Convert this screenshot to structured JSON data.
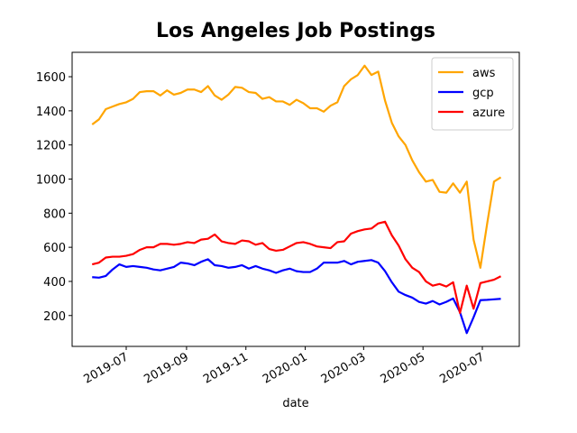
{
  "chart_data": {
    "type": "line",
    "title": "Los Angeles Job Postings",
    "xlabel": "date",
    "xlabel_color": "#8b0000",
    "x": [
      18043,
      18050,
      18057,
      18064,
      18071,
      18078,
      18085,
      18092,
      18099,
      18106,
      18113,
      18120,
      18127,
      18134,
      18141,
      18148,
      18155,
      18162,
      18169,
      18176,
      18183,
      18190,
      18197,
      18204,
      18211,
      18218,
      18225,
      18232,
      18239,
      18246,
      18253,
      18260,
      18267,
      18274,
      18281,
      18288,
      18295,
      18302,
      18309,
      18316,
      18323,
      18330,
      18337,
      18344,
      18351,
      18358,
      18365,
      18372,
      18379,
      18386,
      18393,
      18400,
      18407,
      18414,
      18421,
      18428,
      18435,
      18442,
      18449,
      18456,
      18463
    ],
    "series": [
      {
        "name": "aws",
        "color": "orange",
        "values": [
          1320,
          1350,
          1410,
          1425,
          1440,
          1450,
          1470,
          1510,
          1515,
          1515,
          1490,
          1520,
          1495,
          1505,
          1525,
          1525,
          1510,
          1545,
          1490,
          1465,
          1495,
          1540,
          1535,
          1510,
          1505,
          1470,
          1480,
          1455,
          1455,
          1435,
          1465,
          1445,
          1415,
          1415,
          1395,
          1430,
          1450,
          1545,
          1585,
          1610,
          1665,
          1610,
          1630,
          1460,
          1330,
          1250,
          1200,
          1110,
          1040,
          985,
          995,
          925,
          920,
          975,
          920,
          985,
          645,
          480,
          740,
          985,
          1010
        ]
      },
      {
        "name": "gcp",
        "color": "blue",
        "values": [
          425,
          422,
          432,
          470,
          500,
          485,
          490,
          485,
          480,
          470,
          465,
          475,
          485,
          510,
          505,
          495,
          515,
          530,
          495,
          490,
          480,
          485,
          495,
          475,
          490,
          475,
          465,
          450,
          465,
          475,
          460,
          455,
          455,
          475,
          510,
          510,
          510,
          520,
          500,
          515,
          520,
          525,
          510,
          460,
          395,
          340,
          320,
          305,
          280,
          270,
          285,
          265,
          280,
          300,
          220,
          97,
          190,
          290,
          292,
          295,
          298
        ]
      },
      {
        "name": "azure",
        "color": "red",
        "values": [
          500,
          510,
          540,
          545,
          545,
          550,
          560,
          585,
          600,
          600,
          620,
          620,
          615,
          620,
          630,
          625,
          645,
          650,
          675,
          635,
          625,
          620,
          640,
          635,
          615,
          625,
          590,
          580,
          585,
          605,
          625,
          630,
          620,
          605,
          600,
          595,
          630,
          635,
          680,
          695,
          705,
          710,
          740,
          750,
          670,
          610,
          530,
          480,
          455,
          400,
          375,
          385,
          370,
          395,
          215,
          375,
          240,
          390,
          400,
          410,
          430
        ]
      }
    ],
    "xlim": [
      18022.4,
      18482
    ],
    "xticks": [
      {
        "value": 18078,
        "label": "2019-07"
      },
      {
        "value": 18140,
        "label": "2019-09"
      },
      {
        "value": 18201,
        "label": "2019-11"
      },
      {
        "value": 18262,
        "label": "2020-01"
      },
      {
        "value": 18322,
        "label": "2020-03"
      },
      {
        "value": 18383,
        "label": "2020-05"
      },
      {
        "value": 18444,
        "label": "2020-07"
      }
    ],
    "ylim": [
      19,
      1743
    ],
    "yticks": [
      200,
      400,
      600,
      800,
      1000,
      1200,
      1400,
      1600
    ],
    "legend": "upper right",
    "grid": false
  }
}
